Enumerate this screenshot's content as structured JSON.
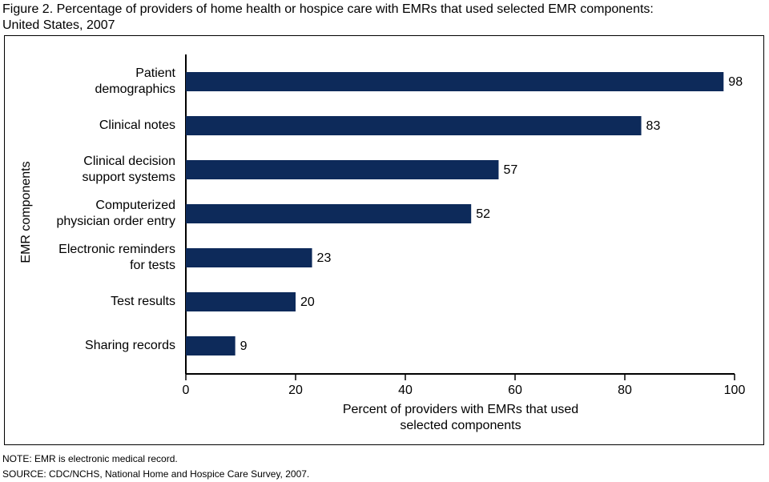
{
  "chart_data": {
    "type": "hbar",
    "title": "Figure 2. Percentage of providers of home health or hospice care with EMRs that used selected EMR components:\nUnited States, 2007",
    "categories": [
      [
        "Patient",
        "demographics"
      ],
      [
        "Clinical notes"
      ],
      [
        "Clinical decision",
        "support systems"
      ],
      [
        "Computerized",
        "physician order entry"
      ],
      [
        "Electronic reminders",
        "for tests"
      ],
      [
        "Test results"
      ],
      [
        "Sharing records"
      ]
    ],
    "values": [
      98,
      83,
      57,
      52,
      23,
      20,
      9
    ],
    "color": "#0d2a5a",
    "xlim": [
      0,
      100
    ],
    "xticks": [
      0,
      20,
      40,
      60,
      80,
      100
    ],
    "xlabel": [
      "Percent of providers with EMRs that used",
      "selected components"
    ],
    "ylabel": "EMR components",
    "note": "NOTE: EMR is electronic medical record.",
    "source": "SOURCE: CDC/NCHS, National Home and Hospice Care Survey, 2007."
  }
}
